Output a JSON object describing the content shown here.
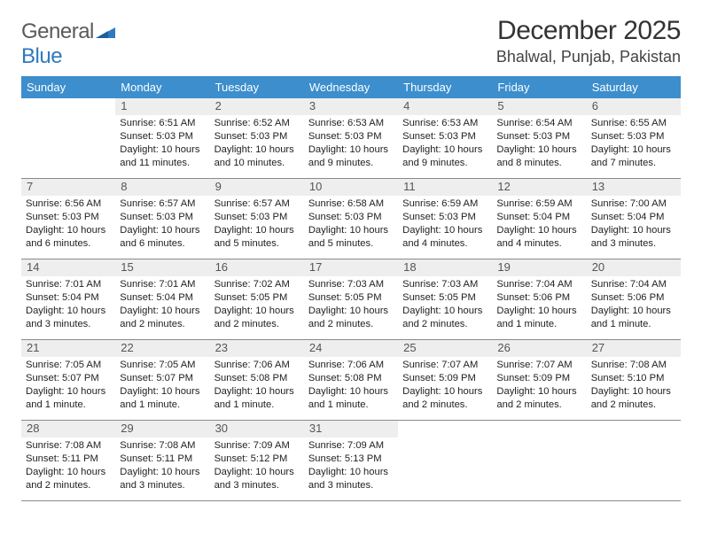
{
  "brand": {
    "part1": "General",
    "part2": "Blue"
  },
  "title": "December 2025",
  "location": "Bhalwal, Punjab, Pakistan",
  "colors": {
    "header_bg": "#3c8ecd",
    "header_text": "#ffffff",
    "daynum_bg": "#eeeeee",
    "daynum_text": "#555555",
    "body_text": "#222222",
    "rule": "#8a8a8a",
    "brand_gray": "#5a5a5a",
    "brand_blue": "#2f79bf"
  },
  "weekdays": [
    "Sunday",
    "Monday",
    "Tuesday",
    "Wednesday",
    "Thursday",
    "Friday",
    "Saturday"
  ],
  "weeks": [
    [
      {
        "blank": true
      },
      {
        "n": "1",
        "sr": "6:51 AM",
        "ss": "5:03 PM",
        "dl": "10 hours and 11 minutes."
      },
      {
        "n": "2",
        "sr": "6:52 AM",
        "ss": "5:03 PM",
        "dl": "10 hours and 10 minutes."
      },
      {
        "n": "3",
        "sr": "6:53 AM",
        "ss": "5:03 PM",
        "dl": "10 hours and 9 minutes."
      },
      {
        "n": "4",
        "sr": "6:53 AM",
        "ss": "5:03 PM",
        "dl": "10 hours and 9 minutes."
      },
      {
        "n": "5",
        "sr": "6:54 AM",
        "ss": "5:03 PM",
        "dl": "10 hours and 8 minutes."
      },
      {
        "n": "6",
        "sr": "6:55 AM",
        "ss": "5:03 PM",
        "dl": "10 hours and 7 minutes."
      }
    ],
    [
      {
        "n": "7",
        "sr": "6:56 AM",
        "ss": "5:03 PM",
        "dl": "10 hours and 6 minutes."
      },
      {
        "n": "8",
        "sr": "6:57 AM",
        "ss": "5:03 PM",
        "dl": "10 hours and 6 minutes."
      },
      {
        "n": "9",
        "sr": "6:57 AM",
        "ss": "5:03 PM",
        "dl": "10 hours and 5 minutes."
      },
      {
        "n": "10",
        "sr": "6:58 AM",
        "ss": "5:03 PM",
        "dl": "10 hours and 5 minutes."
      },
      {
        "n": "11",
        "sr": "6:59 AM",
        "ss": "5:03 PM",
        "dl": "10 hours and 4 minutes."
      },
      {
        "n": "12",
        "sr": "6:59 AM",
        "ss": "5:04 PM",
        "dl": "10 hours and 4 minutes."
      },
      {
        "n": "13",
        "sr": "7:00 AM",
        "ss": "5:04 PM",
        "dl": "10 hours and 3 minutes."
      }
    ],
    [
      {
        "n": "14",
        "sr": "7:01 AM",
        "ss": "5:04 PM",
        "dl": "10 hours and 3 minutes."
      },
      {
        "n": "15",
        "sr": "7:01 AM",
        "ss": "5:04 PM",
        "dl": "10 hours and 2 minutes."
      },
      {
        "n": "16",
        "sr": "7:02 AM",
        "ss": "5:05 PM",
        "dl": "10 hours and 2 minutes."
      },
      {
        "n": "17",
        "sr": "7:03 AM",
        "ss": "5:05 PM",
        "dl": "10 hours and 2 minutes."
      },
      {
        "n": "18",
        "sr": "7:03 AM",
        "ss": "5:05 PM",
        "dl": "10 hours and 2 minutes."
      },
      {
        "n": "19",
        "sr": "7:04 AM",
        "ss": "5:06 PM",
        "dl": "10 hours and 1 minute."
      },
      {
        "n": "20",
        "sr": "7:04 AM",
        "ss": "5:06 PM",
        "dl": "10 hours and 1 minute."
      }
    ],
    [
      {
        "n": "21",
        "sr": "7:05 AM",
        "ss": "5:07 PM",
        "dl": "10 hours and 1 minute."
      },
      {
        "n": "22",
        "sr": "7:05 AM",
        "ss": "5:07 PM",
        "dl": "10 hours and 1 minute."
      },
      {
        "n": "23",
        "sr": "7:06 AM",
        "ss": "5:08 PM",
        "dl": "10 hours and 1 minute."
      },
      {
        "n": "24",
        "sr": "7:06 AM",
        "ss": "5:08 PM",
        "dl": "10 hours and 1 minute."
      },
      {
        "n": "25",
        "sr": "7:07 AM",
        "ss": "5:09 PM",
        "dl": "10 hours and 2 minutes."
      },
      {
        "n": "26",
        "sr": "7:07 AM",
        "ss": "5:09 PM",
        "dl": "10 hours and 2 minutes."
      },
      {
        "n": "27",
        "sr": "7:08 AM",
        "ss": "5:10 PM",
        "dl": "10 hours and 2 minutes."
      }
    ],
    [
      {
        "n": "28",
        "sr": "7:08 AM",
        "ss": "5:11 PM",
        "dl": "10 hours and 2 minutes."
      },
      {
        "n": "29",
        "sr": "7:08 AM",
        "ss": "5:11 PM",
        "dl": "10 hours and 3 minutes."
      },
      {
        "n": "30",
        "sr": "7:09 AM",
        "ss": "5:12 PM",
        "dl": "10 hours and 3 minutes."
      },
      {
        "n": "31",
        "sr": "7:09 AM",
        "ss": "5:13 PM",
        "dl": "10 hours and 3 minutes."
      },
      {
        "blank": true
      },
      {
        "blank": true
      },
      {
        "blank": true
      }
    ]
  ],
  "labels": {
    "sunrise": "Sunrise:",
    "sunset": "Sunset:",
    "daylight": "Daylight:"
  }
}
